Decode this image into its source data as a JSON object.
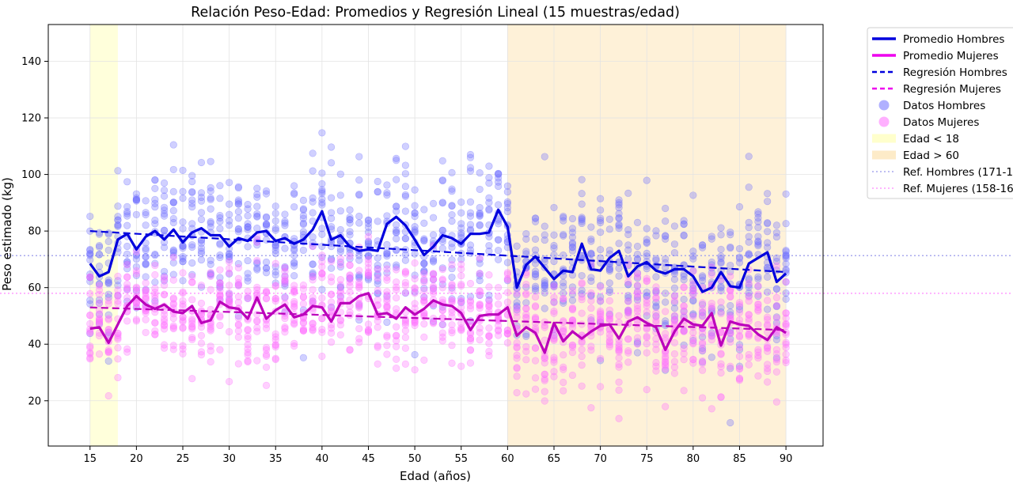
{
  "chart_data": {
    "type": "scatter",
    "title": "Relación Peso-Edad: Promedios y Regresión Lineal (15 muestras/edad)",
    "xlabel": "Edad (años)",
    "ylabel": "Peso estimado (kg)",
    "xlim": [
      10.5,
      94
    ],
    "ylim": [
      4,
      153
    ],
    "x_ticks": [
      15,
      20,
      25,
      30,
      35,
      40,
      45,
      50,
      55,
      60,
      65,
      70,
      75,
      80,
      85,
      90
    ],
    "y_ticks": [
      20,
      40,
      60,
      80,
      100,
      120,
      140
    ],
    "grid": true,
    "legend_position": "outside-top-right",
    "samples_per_age": 15,
    "colors": {
      "men_line": "#0000dd",
      "women_line": "#bb00bb",
      "men_points": "#7070ff",
      "women_points": "#ff70ff",
      "under18_region": "#ffffcc",
      "over60_region": "#fdebc8"
    },
    "regions": [
      {
        "label": "Edad < 18",
        "x_range": [
          15,
          18
        ]
      },
      {
        "label": "Edad > 60",
        "x_range": [
          60,
          90
        ]
      }
    ],
    "reference_lines": [
      {
        "label": "Ref. Hombres (171-1",
        "y": 71.3
      },
      {
        "label": "Ref. Mujeres (158-16",
        "y": 58
      }
    ],
    "series": [
      {
        "name": "Promedio Hombres",
        "kind": "line",
        "x": [
          15,
          16,
          17,
          18,
          19,
          20,
          21,
          22,
          23,
          24,
          25,
          26,
          27,
          28,
          29,
          30,
          31,
          32,
          33,
          34,
          35,
          36,
          37,
          38,
          39,
          40,
          41,
          42,
          43,
          44,
          45,
          46,
          47,
          48,
          49,
          50,
          51,
          52,
          53,
          54,
          55,
          56,
          57,
          58,
          59,
          60,
          61,
          62,
          63,
          64,
          65,
          66,
          67,
          68,
          69,
          70,
          71,
          72,
          73,
          74,
          75,
          76,
          77,
          78,
          79,
          80,
          81,
          82,
          83,
          84,
          85,
          86,
          87,
          88,
          89,
          90
        ],
        "y": [
          68.5,
          64,
          65.5,
          77,
          79,
          73.5,
          78,
          80,
          77,
          80.5,
          76,
          79.5,
          81,
          78.5,
          78.5,
          74.5,
          77.5,
          76.5,
          79.5,
          80,
          76.5,
          77.5,
          75.5,
          77,
          80.5,
          87,
          77,
          78.5,
          74.5,
          73,
          73.5,
          73,
          82.5,
          85,
          82,
          77,
          71.5,
          74.5,
          78.5,
          77.5,
          75.5,
          79,
          79,
          79.5,
          87.5,
          81.5,
          60,
          68,
          71,
          67,
          63,
          66,
          65.5,
          75.5,
          66.5,
          66,
          70.5,
          73,
          64,
          67.5,
          69,
          66,
          65,
          66.5,
          66.5,
          64,
          58.5,
          60,
          65.5,
          60.5,
          60,
          68.5,
          70.5,
          72.5,
          62,
          65
        ]
      },
      {
        "name": "Promedio Mujeres",
        "kind": "line",
        "x": [
          15,
          16,
          17,
          18,
          19,
          20,
          21,
          22,
          23,
          24,
          25,
          26,
          27,
          28,
          29,
          30,
          31,
          32,
          33,
          34,
          35,
          36,
          37,
          38,
          39,
          40,
          41,
          42,
          43,
          44,
          45,
          46,
          47,
          48,
          49,
          50,
          51,
          52,
          53,
          54,
          55,
          56,
          57,
          58,
          59,
          60,
          61,
          62,
          63,
          64,
          65,
          66,
          67,
          68,
          69,
          70,
          71,
          72,
          73,
          74,
          75,
          76,
          77,
          78,
          79,
          80,
          81,
          82,
          83,
          84,
          85,
          86,
          87,
          88,
          89,
          90
        ],
        "y": [
          45.5,
          46,
          40.5,
          47,
          53.5,
          57,
          54,
          52.5,
          54,
          51.5,
          51,
          53.5,
          47.5,
          48.5,
          55,
          53,
          52.5,
          49,
          56.5,
          49,
          52,
          54,
          49.5,
          50.5,
          53.5,
          53,
          48,
          54.5,
          54.5,
          57,
          58,
          50.5,
          51,
          49,
          53,
          50.5,
          52.5,
          55.5,
          54,
          53.5,
          51,
          45,
          50,
          50.5,
          50.5,
          53,
          43,
          46,
          44,
          37,
          47.5,
          41,
          44.5,
          42,
          44.5,
          46.5,
          47,
          42,
          48,
          49.5,
          47.5,
          46,
          38,
          44.5,
          49,
          47,
          46.5,
          51,
          39.5,
          48,
          47,
          46.5,
          43.5,
          41.5,
          46,
          44
        ]
      },
      {
        "name": "Regresión Hombres",
        "kind": "regression",
        "x": [
          15,
          90
        ],
        "y": [
          80,
          65.5
        ]
      },
      {
        "name": "Regresión Mujeres",
        "kind": "regression",
        "x": [
          15,
          90
        ],
        "y": [
          53,
          45
        ]
      },
      {
        "name": "Datos Hombres",
        "kind": "scatter"
      },
      {
        "name": "Datos Mujeres",
        "kind": "scatter"
      }
    ],
    "scatter_spread": {
      "men_sd": 12,
      "women_sd": 9
    }
  }
}
